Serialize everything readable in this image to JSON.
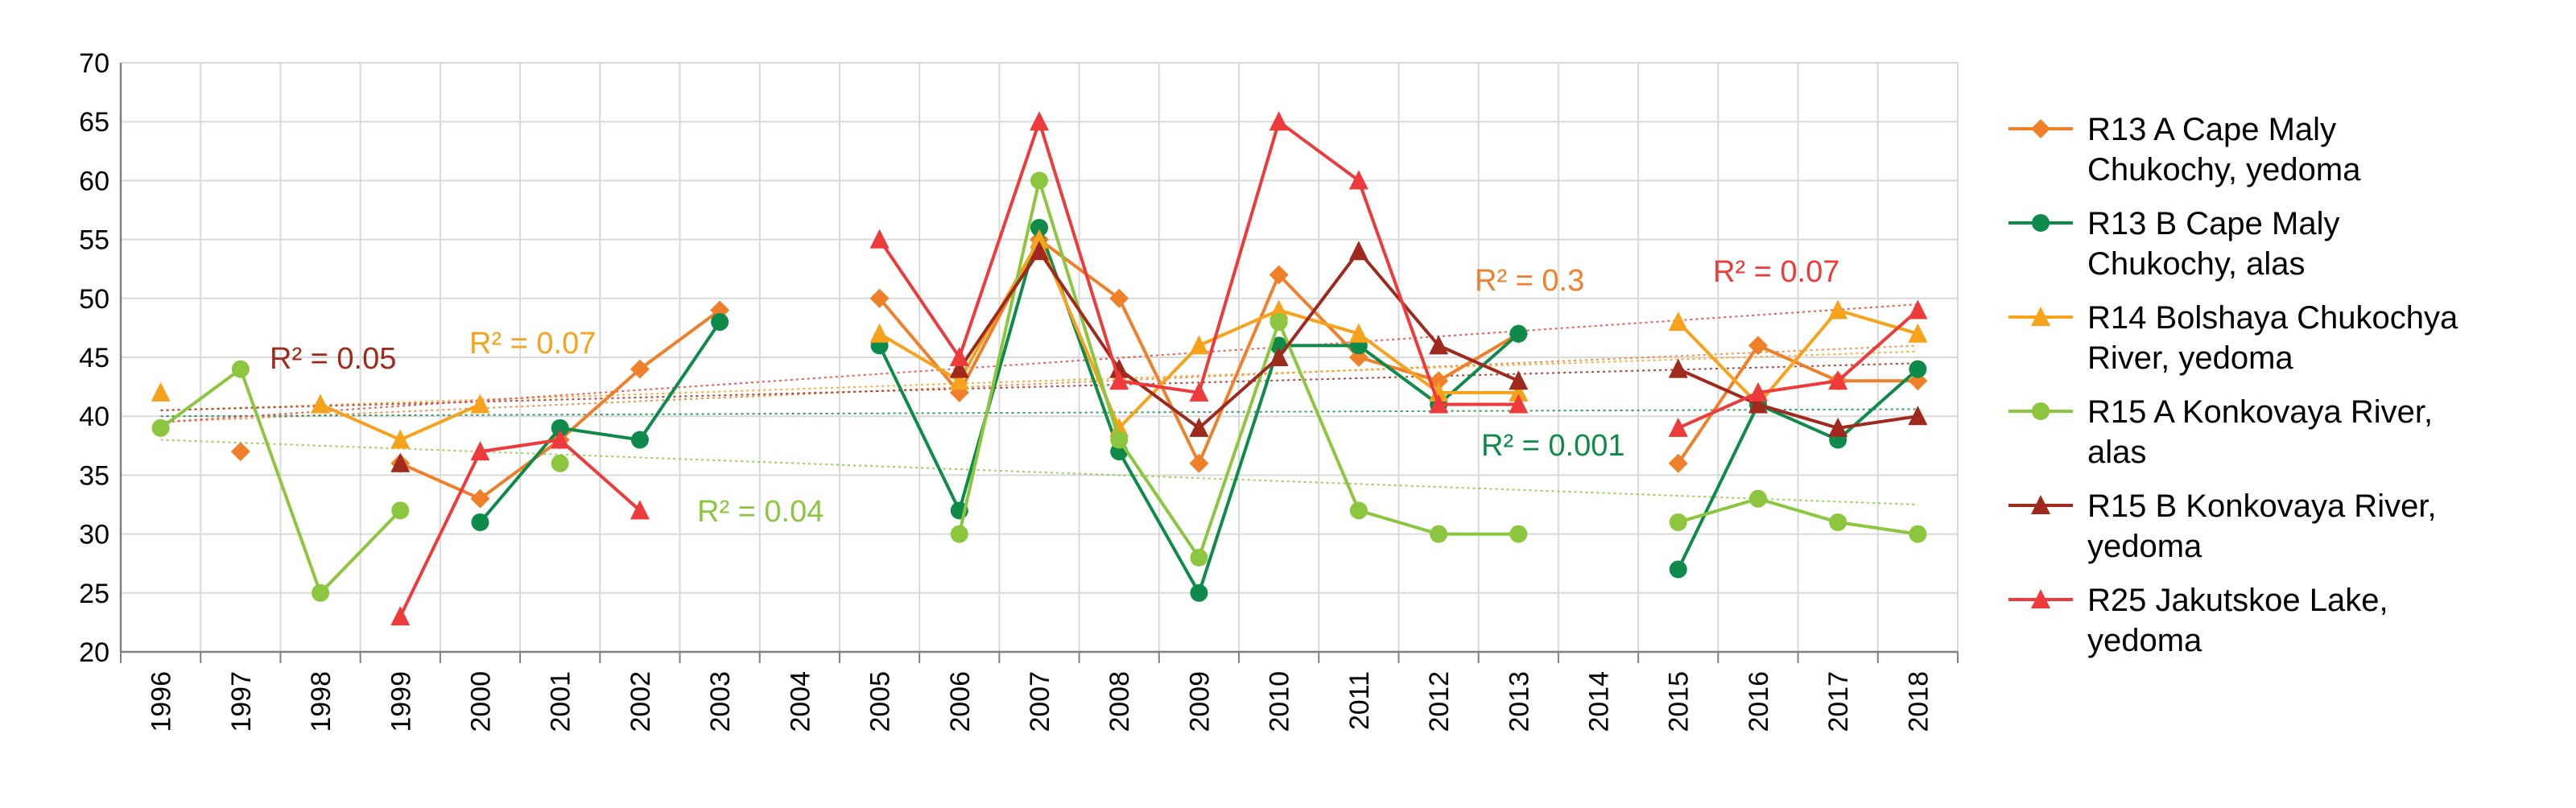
{
  "chart_data": {
    "type": "line",
    "title": "",
    "xlabel": "",
    "ylabel": "",
    "ylim": [
      20,
      70
    ],
    "y_ticks": [
      20,
      25,
      30,
      35,
      40,
      45,
      50,
      55,
      60,
      65,
      70
    ],
    "categories": [
      "1996",
      "1997",
      "1998",
      "1999",
      "2000",
      "2001",
      "2002",
      "2003",
      "2004",
      "2005",
      "2006",
      "2007",
      "2008",
      "2009",
      "2010",
      "2011",
      "2012",
      "2013",
      "2014",
      "2015",
      "2016",
      "2017",
      "2018"
    ],
    "grid": true,
    "legend_position": "right",
    "series": [
      {
        "name": "R13 A Cape Maly Chukochy, yedoma",
        "legend_lines": [
          "R13 A Cape Maly",
          "Chukochy, yedoma"
        ],
        "color": "#F07F2A",
        "marker": "diamond",
        "values": [
          null,
          37,
          null,
          36,
          33,
          38,
          44,
          49,
          null,
          50,
          42,
          55,
          50,
          36,
          52,
          45,
          43,
          47,
          null,
          36,
          46,
          43,
          43
        ],
        "trend": [
          39.5,
          46.0
        ],
        "r2": "R² = 0.3"
      },
      {
        "name": "R13 B Cape Maly Chukochy, alas",
        "legend_lines": [
          "R13 B Cape Maly",
          "Chukochy, alas"
        ],
        "color": "#0E8A4A",
        "marker": "circle",
        "values": [
          null,
          null,
          null,
          null,
          31,
          39,
          38,
          48,
          null,
          46,
          32,
          56,
          37,
          25,
          46,
          46,
          41,
          47,
          null,
          27,
          41,
          38,
          44
        ],
        "trend": [
          40.0,
          40.6
        ],
        "r2": "R² = 0.001"
      },
      {
        "name": "R14 Bolshaya Chukochya River, yedoma",
        "legend_lines": [
          "R14 Bolshaya Chukochya",
          "River, yedoma"
        ],
        "color": "#F7A21B",
        "marker": "triangle",
        "values": [
          42,
          null,
          41,
          38,
          41,
          null,
          null,
          null,
          null,
          47,
          43,
          55,
          39,
          46,
          49,
          47,
          42,
          42,
          null,
          48,
          41,
          49,
          47
        ],
        "trend": [
          40.5,
          45.5
        ],
        "r2": "R² = 0.07"
      },
      {
        "name": "R15 A Konkovaya River, alas",
        "legend_lines": [
          "R15 A Konkovaya River,",
          "alas"
        ],
        "color": "#8CC63E",
        "marker": "circle",
        "values": [
          39,
          44,
          25,
          32,
          null,
          36,
          null,
          null,
          null,
          null,
          30,
          60,
          38,
          28,
          48,
          32,
          30,
          30,
          null,
          31,
          33,
          31,
          30
        ],
        "trend": [
          38.0,
          32.5
        ],
        "r2": "R² = 0.04"
      },
      {
        "name": "R15 B Konkovaya River, yedoma",
        "legend_lines": [
          "R15 B Konkovaya River,",
          "yedoma"
        ],
        "color": "#A0291E",
        "marker": "triangle",
        "values": [
          null,
          null,
          null,
          36,
          null,
          null,
          null,
          null,
          null,
          null,
          44,
          54,
          44,
          39,
          45,
          54,
          46,
          43,
          null,
          44,
          41,
          39,
          40
        ],
        "trend": [
          40.5,
          44.5
        ],
        "r2": "R² = 0.05"
      },
      {
        "name": "R25 Jakutskoe Lake, yedoma",
        "legend_lines": [
          "R25 Jakutskoe Lake,",
          "yedoma"
        ],
        "color": "#EE3A3A",
        "marker": "triangle",
        "values": [
          null,
          null,
          null,
          23,
          37,
          38,
          32,
          null,
          null,
          55,
          45,
          65,
          43,
          42,
          65,
          60,
          41,
          41,
          null,
          39,
          42,
          43,
          49
        ],
        "trend": [
          39.5,
          49.5
        ],
        "r2": "R² = 0.07"
      }
    ]
  }
}
